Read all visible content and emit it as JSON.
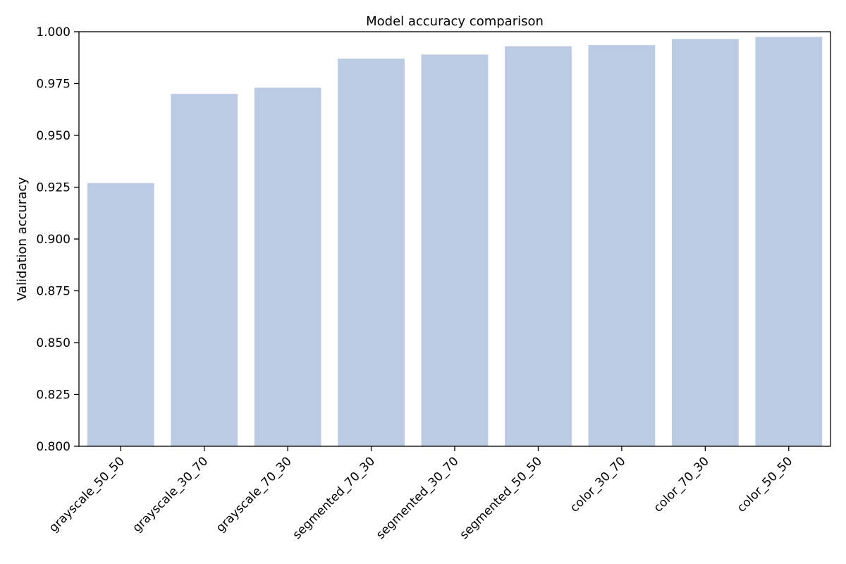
{
  "chart_data": {
    "type": "bar",
    "title": "Model accuracy comparison",
    "xlabel": "",
    "ylabel": "Validation accuracy",
    "categories": [
      "grayscale_50_50",
      "grayscale_30_70",
      "grayscale_70_30",
      "segmented_70_30",
      "segmented_30_70",
      "segmented_50_50",
      "color_30_70",
      "color_70_30",
      "color_50_50"
    ],
    "values": [
      0.927,
      0.97,
      0.973,
      0.987,
      0.989,
      0.993,
      0.9935,
      0.9965,
      0.9975
    ],
    "ylim": [
      0.8,
      1.0
    ],
    "yticks": [
      "0.800",
      "0.825",
      "0.850",
      "0.875",
      "0.900",
      "0.925",
      "0.950",
      "0.975",
      "1.000"
    ],
    "bar_color": "#bbcbe4",
    "axis_color": "#000000",
    "grid": false,
    "legend": "none"
  }
}
